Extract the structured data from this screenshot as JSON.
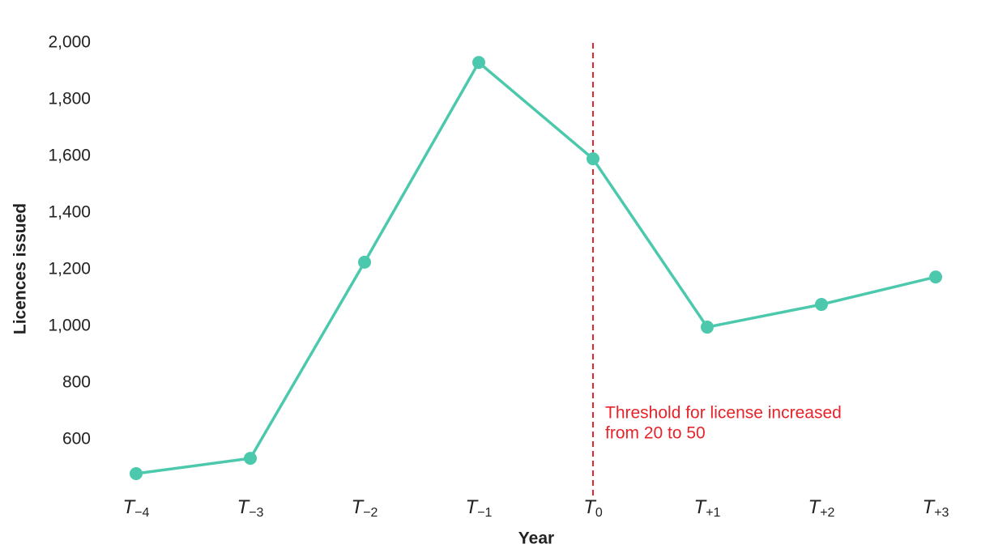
{
  "chart_data": {
    "type": "line",
    "x_label": "Year",
    "y_label": "Licences issued",
    "categories": [
      "T−4",
      "T−3",
      "T−2",
      "T−1",
      "T0",
      "T+1",
      "T+2",
      "T+3"
    ],
    "values": [
      480,
      534,
      1226,
      1931,
      1591,
      997,
      1077,
      1174
    ],
    "color": "#4cc9ad",
    "ylim": [
      400,
      2000
    ],
    "yticks": [
      600,
      800,
      {
        "value": 1000,
        "label": "1,000"
      },
      {
        "value": 1200,
        "label": "1,200"
      },
      {
        "value": 1400,
        "label": "1,400"
      },
      {
        "value": 1600,
        "label": "1,600"
      },
      {
        "value": 1800,
        "label": "1,800"
      },
      {
        "value": 2000,
        "label": "2,000"
      }
    ],
    "grid": false,
    "annotation": {
      "category": "T0",
      "color": "#e8232a",
      "lines": [
        "Threshold for license increased",
        "from 20 to 50"
      ]
    }
  }
}
